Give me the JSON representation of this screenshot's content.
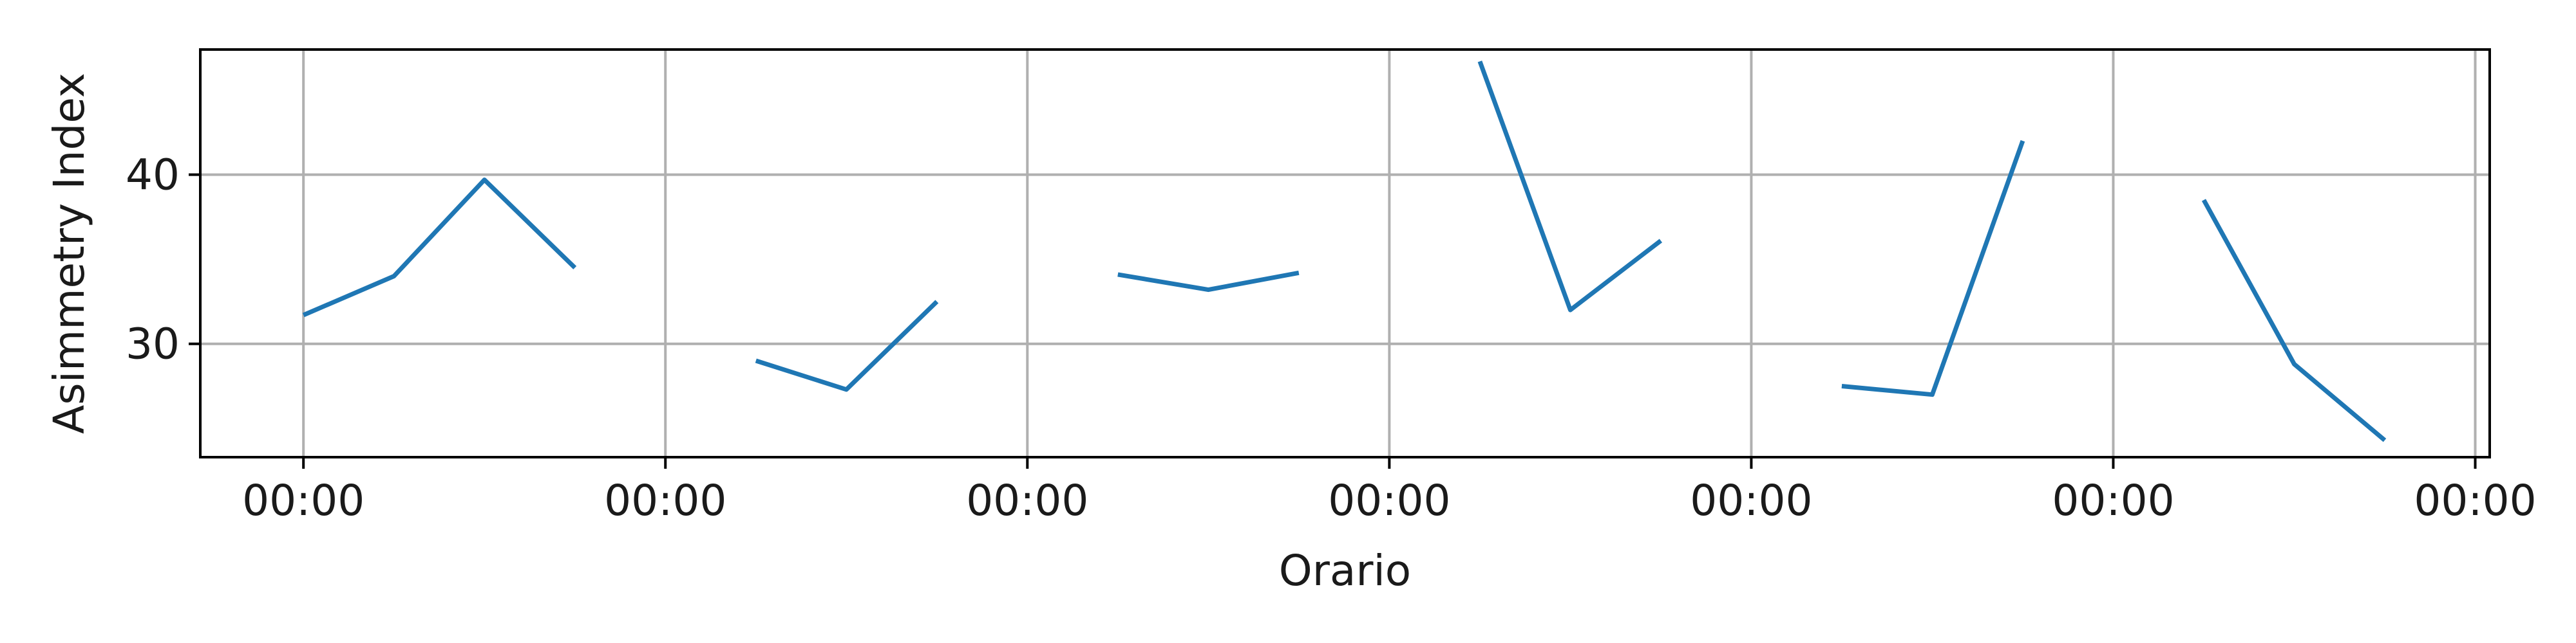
{
  "chart_data": {
    "type": "line",
    "title": "",
    "xlabel": "Orario",
    "ylabel": "Asimmetry Index",
    "x_tick_labels": [
      "00:00",
      "00:00",
      "00:00",
      "00:00",
      "00:00",
      "00:00",
      "00:00"
    ],
    "y_ticks": [
      30,
      40
    ],
    "ylim": [
      23.3,
      47.4
    ],
    "grid": true,
    "legend": "none",
    "line_color": "#1f77b4",
    "segments": [
      {
        "x": [
          0.0,
          0.25,
          0.5,
          0.75
        ],
        "y": [
          31.7,
          34.0,
          39.7,
          34.5
        ]
      },
      {
        "x": [
          1.25,
          1.5,
          1.75
        ],
        "y": [
          29.0,
          27.3,
          32.5
        ]
      },
      {
        "x": [
          2.25,
          2.5,
          2.75
        ],
        "y": [
          34.1,
          33.2,
          34.2
        ]
      },
      {
        "x": [
          3.25,
          3.5,
          3.75
        ],
        "y": [
          46.7,
          32.0,
          36.1
        ]
      },
      {
        "x": [
          4.25,
          4.5,
          4.75
        ],
        "y": [
          27.5,
          27.0,
          42.0
        ]
      },
      {
        "x": [
          5.25,
          5.5,
          5.75
        ],
        "y": [
          38.5,
          28.8,
          24.3
        ]
      }
    ],
    "xlim": [
      -0.285,
      6.04
    ]
  }
}
